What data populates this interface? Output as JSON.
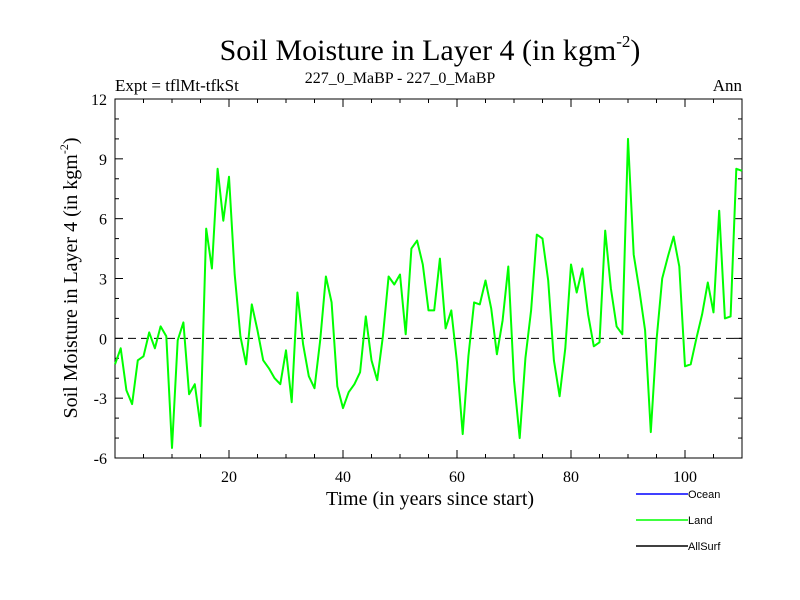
{
  "chart_data": {
    "type": "line",
    "title": "Soil Moisture in Layer 4 (in kgm",
    "title_sup": "-2",
    "title_end": ")",
    "subtitle_left": "Expt = tflMt-tfkSt",
    "subtitle_center": "227_0_MaBP - 227_0_MaBP",
    "subtitle_right": "Ann",
    "xlabel": "Time (in years since start)",
    "ylabel": "Soil Moisture in Layer 4 (in kgm",
    "ylabel_sup": "-2",
    "ylabel_end": ")",
    "xlim": [
      0,
      110
    ],
    "ylim": [
      -6,
      12
    ],
    "x_ticks": [
      20,
      40,
      60,
      80,
      100
    ],
    "x_tick_labels": [
      "20",
      "40",
      "60",
      "80",
      "100"
    ],
    "y_ticks": [
      -6,
      -3,
      0,
      3,
      6,
      9,
      12
    ],
    "y_tick_labels": [
      "-6",
      "-3",
      "0",
      "3",
      "6",
      "9",
      "12"
    ],
    "zero_line": true,
    "legend": [
      {
        "name": "Ocean",
        "color": "#0000ff"
      },
      {
        "name": "Land",
        "color": "#00ff00"
      },
      {
        "name": "AllSurf",
        "color": "#000000"
      }
    ],
    "series": [
      {
        "name": "Land",
        "color": "#00ff00",
        "x": [
          0,
          1,
          2,
          3,
          4,
          5,
          6,
          7,
          8,
          9,
          10,
          11,
          12,
          13,
          14,
          15,
          16,
          17,
          18,
          19,
          20,
          21,
          22,
          23,
          24,
          25,
          26,
          27,
          28,
          29,
          30,
          31,
          32,
          33,
          34,
          35,
          36,
          37,
          38,
          39,
          40,
          41,
          42,
          43,
          44,
          45,
          46,
          47,
          48,
          49,
          50,
          51,
          52,
          53,
          54,
          55,
          56,
          57,
          58,
          59,
          60,
          61,
          62,
          63,
          64,
          65,
          66,
          67,
          68,
          69,
          70,
          71,
          72,
          73,
          74,
          75,
          76,
          77,
          78,
          79,
          80,
          81,
          82,
          83,
          84,
          85,
          86,
          87,
          88,
          89,
          90,
          91,
          92,
          93,
          94,
          95,
          96,
          97,
          98,
          99,
          100,
          101,
          102,
          103,
          104,
          105,
          106,
          107,
          108,
          109,
          110
        ],
        "values": [
          -1.3,
          -0.5,
          -2.6,
          -3.3,
          -1.1,
          -0.9,
          0.3,
          -0.5,
          0.6,
          0.1,
          -5.5,
          -0.1,
          0.8,
          -2.8,
          -2.3,
          -4.4,
          5.5,
          3.5,
          8.5,
          5.9,
          8.1,
          3.2,
          0.1,
          -1.3,
          1.7,
          0.4,
          -1.1,
          -1.5,
          -2.0,
          -2.3,
          -0.6,
          -3.2,
          2.3,
          -0.3,
          -1.9,
          -2.5,
          -0.1,
          3.1,
          1.8,
          -2.4,
          -3.5,
          -2.7,
          -2.3,
          -1.7,
          1.1,
          -1.1,
          -2.1,
          0.1,
          3.1,
          2.7,
          3.2,
          0.2,
          4.5,
          4.9,
          3.7,
          1.4,
          1.4,
          4.0,
          0.5,
          1.4,
          -1.2,
          -4.8,
          -0.9,
          1.8,
          1.7,
          2.9,
          1.5,
          -0.8,
          0.9,
          3.6,
          -2.1,
          -5.0,
          -1.0,
          1.4,
          5.2,
          5.0,
          2.9,
          -1.1,
          -2.9,
          -0.5,
          3.7,
          2.3,
          3.5,
          1.2,
          -0.4,
          -0.2,
          5.4,
          2.5,
          0.6,
          0.2,
          10.0,
          4.2,
          2.4,
          0.4,
          -4.7,
          -0.1,
          3.0,
          4.1,
          5.1,
          3.6,
          -1.4,
          -1.3,
          0.0,
          1.2,
          2.8,
          1.3,
          6.4,
          1.0,
          1.1,
          8.5,
          8.4
        ]
      }
    ]
  }
}
